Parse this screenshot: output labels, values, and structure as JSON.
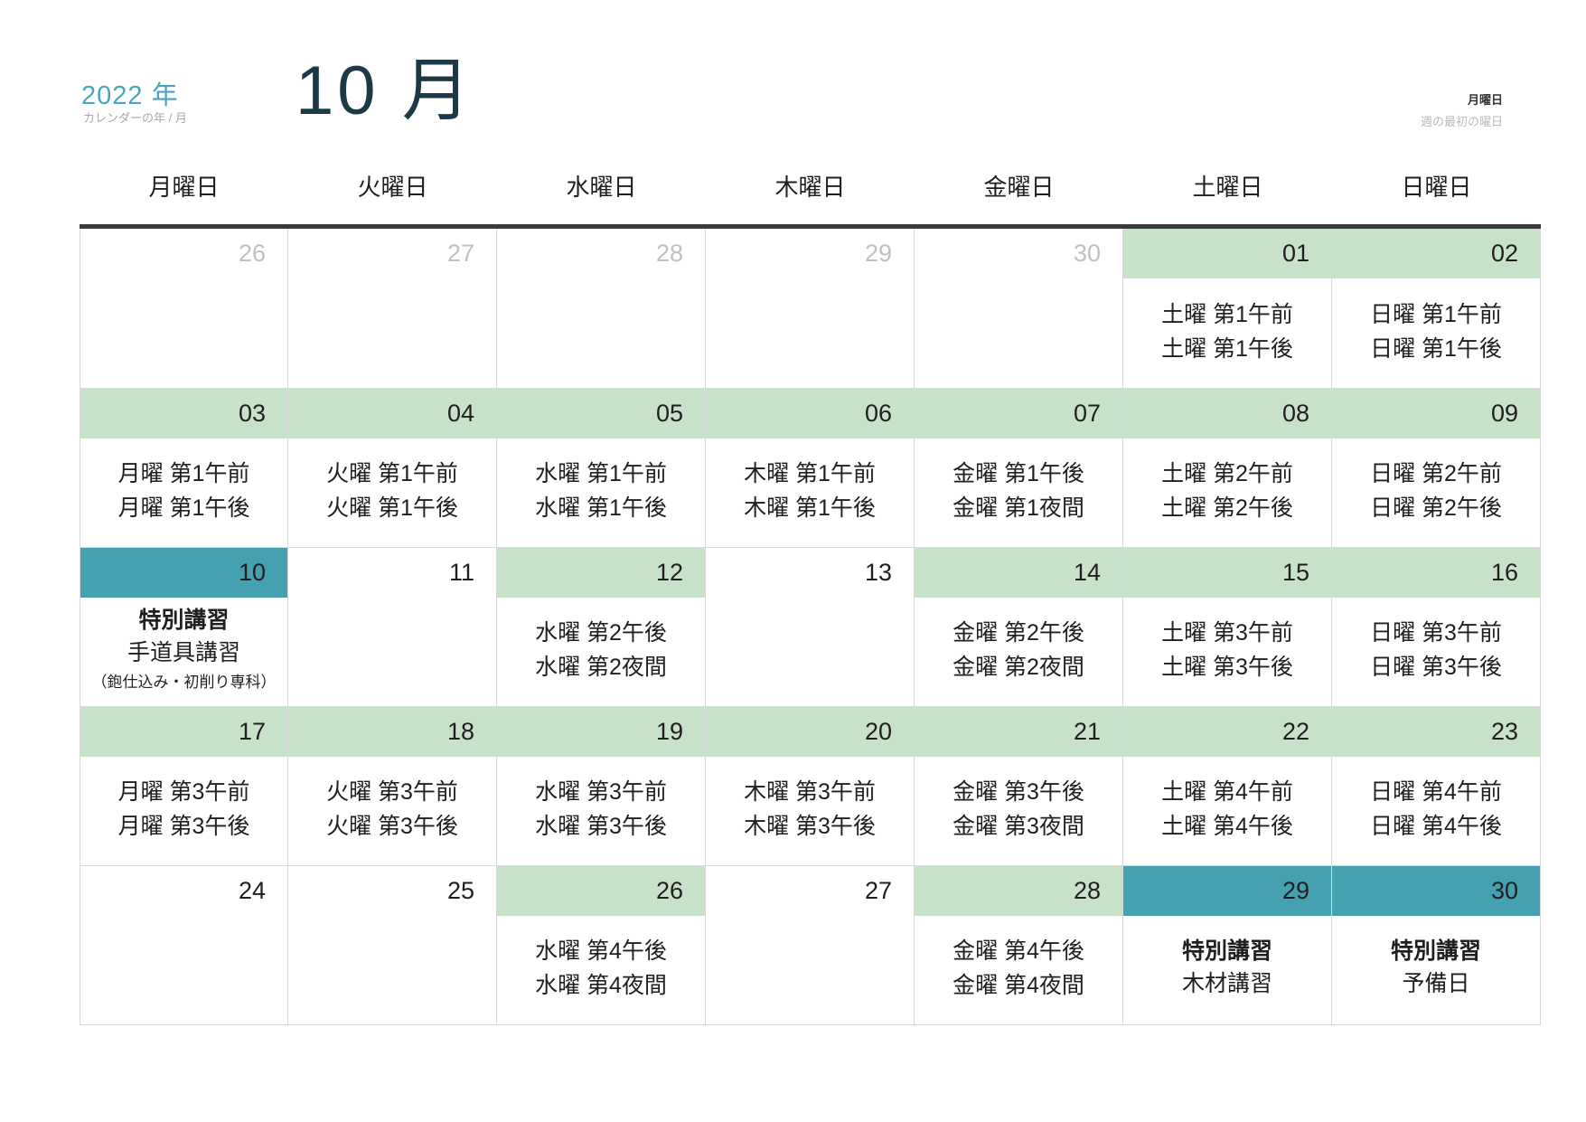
{
  "header": {
    "year": "2022 年",
    "year_caption": "カレンダーの年 / 月",
    "month_title": "10 月",
    "week_start": "月曜日",
    "week_start_caption": "週の最初の曜日"
  },
  "colors": {
    "band_green": "#c8e2ca",
    "band_teal": "#45a1b0",
    "year_text": "#4aa6bc",
    "title_text": "#1c3945",
    "muted_number": "#c0c0c0"
  },
  "weekdays": [
    "月曜日",
    "火曜日",
    "水曜日",
    "木曜日",
    "金曜日",
    "土曜日",
    "日曜日"
  ],
  "weeks": [
    {
      "days": [
        {
          "num": "26",
          "band": "outside",
          "events": []
        },
        {
          "num": "27",
          "band": "outside",
          "events": []
        },
        {
          "num": "28",
          "band": "outside",
          "events": []
        },
        {
          "num": "29",
          "band": "outside",
          "events": []
        },
        {
          "num": "30",
          "band": "outside",
          "events": []
        },
        {
          "num": "01",
          "band": "green",
          "events": [
            {
              "text": "土曜 第1午前",
              "style": "normal"
            },
            {
              "text": "土曜 第1午後",
              "style": "normal"
            }
          ]
        },
        {
          "num": "02",
          "band": "green",
          "events": [
            {
              "text": "日曜 第1午前",
              "style": "normal"
            },
            {
              "text": "日曜 第1午後",
              "style": "normal"
            }
          ]
        }
      ]
    },
    {
      "days": [
        {
          "num": "03",
          "band": "green",
          "events": [
            {
              "text": "月曜 第1午前",
              "style": "normal"
            },
            {
              "text": "月曜 第1午後",
              "style": "normal"
            }
          ]
        },
        {
          "num": "04",
          "band": "green",
          "events": [
            {
              "text": "火曜 第1午前",
              "style": "normal"
            },
            {
              "text": "火曜 第1午後",
              "style": "normal"
            }
          ]
        },
        {
          "num": "05",
          "band": "green",
          "events": [
            {
              "text": "水曜 第1午前",
              "style": "normal"
            },
            {
              "text": "水曜 第1午後",
              "style": "normal"
            }
          ]
        },
        {
          "num": "06",
          "band": "green",
          "events": [
            {
              "text": "木曜 第1午前",
              "style": "normal"
            },
            {
              "text": "木曜 第1午後",
              "style": "normal"
            }
          ]
        },
        {
          "num": "07",
          "band": "green",
          "events": [
            {
              "text": "金曜 第1午後",
              "style": "normal"
            },
            {
              "text": "金曜 第1夜間",
              "style": "normal"
            }
          ]
        },
        {
          "num": "08",
          "band": "green",
          "events": [
            {
              "text": "土曜 第2午前",
              "style": "normal"
            },
            {
              "text": "土曜 第2午後",
              "style": "normal"
            }
          ]
        },
        {
          "num": "09",
          "band": "green",
          "events": [
            {
              "text": "日曜 第2午前",
              "style": "normal"
            },
            {
              "text": "日曜 第2午後",
              "style": "normal"
            }
          ]
        }
      ]
    },
    {
      "days": [
        {
          "num": "10",
          "band": "teal",
          "events": [
            {
              "text": "特別講習",
              "style": "bold"
            },
            {
              "text": "手道具講習",
              "style": "normal"
            },
            {
              "text": "（鉋仕込み・初削り専科）",
              "style": "small"
            }
          ]
        },
        {
          "num": "11",
          "band": "plain",
          "events": []
        },
        {
          "num": "12",
          "band": "green",
          "events": [
            {
              "text": "水曜 第2午後",
              "style": "normal"
            },
            {
              "text": "水曜 第2夜間",
              "style": "normal"
            }
          ]
        },
        {
          "num": "13",
          "band": "plain",
          "events": []
        },
        {
          "num": "14",
          "band": "green",
          "events": [
            {
              "text": "金曜 第2午後",
              "style": "normal"
            },
            {
              "text": "金曜 第2夜間",
              "style": "normal"
            }
          ]
        },
        {
          "num": "15",
          "band": "green",
          "events": [
            {
              "text": "土曜 第3午前",
              "style": "normal"
            },
            {
              "text": "土曜 第3午後",
              "style": "normal"
            }
          ]
        },
        {
          "num": "16",
          "band": "green",
          "events": [
            {
              "text": "日曜 第3午前",
              "style": "normal"
            },
            {
              "text": "日曜 第3午後",
              "style": "normal"
            }
          ]
        }
      ]
    },
    {
      "days": [
        {
          "num": "17",
          "band": "green",
          "events": [
            {
              "text": "月曜 第3午前",
              "style": "normal"
            },
            {
              "text": "月曜 第3午後",
              "style": "normal"
            }
          ]
        },
        {
          "num": "18",
          "band": "green",
          "events": [
            {
              "text": "火曜 第3午前",
              "style": "normal"
            },
            {
              "text": "火曜 第3午後",
              "style": "normal"
            }
          ]
        },
        {
          "num": "19",
          "band": "green",
          "events": [
            {
              "text": "水曜 第3午前",
              "style": "normal"
            },
            {
              "text": "水曜 第3午後",
              "style": "normal"
            }
          ]
        },
        {
          "num": "20",
          "band": "green",
          "events": [
            {
              "text": "木曜 第3午前",
              "style": "normal"
            },
            {
              "text": "木曜 第3午後",
              "style": "normal"
            }
          ]
        },
        {
          "num": "21",
          "band": "green",
          "events": [
            {
              "text": "金曜 第3午後",
              "style": "normal"
            },
            {
              "text": "金曜 第3夜間",
              "style": "normal"
            }
          ]
        },
        {
          "num": "22",
          "band": "green",
          "events": [
            {
              "text": "土曜 第4午前",
              "style": "normal"
            },
            {
              "text": "土曜 第4午後",
              "style": "normal"
            }
          ]
        },
        {
          "num": "23",
          "band": "green",
          "events": [
            {
              "text": "日曜 第4午前",
              "style": "normal"
            },
            {
              "text": "日曜 第4午後",
              "style": "normal"
            }
          ]
        }
      ]
    },
    {
      "days": [
        {
          "num": "24",
          "band": "plain",
          "events": []
        },
        {
          "num": "25",
          "band": "plain",
          "events": []
        },
        {
          "num": "26",
          "band": "green",
          "events": [
            {
              "text": "水曜 第4午後",
              "style": "normal"
            },
            {
              "text": "水曜 第4夜間",
              "style": "normal"
            }
          ]
        },
        {
          "num": "27",
          "band": "plain",
          "events": []
        },
        {
          "num": "28",
          "band": "green",
          "events": [
            {
              "text": "金曜 第4午後",
              "style": "normal"
            },
            {
              "text": "金曜 第4夜間",
              "style": "normal"
            }
          ]
        },
        {
          "num": "29",
          "band": "teal",
          "events": [
            {
              "text": "特別講習",
              "style": "bold"
            },
            {
              "text": "木材講習",
              "style": "normal"
            }
          ]
        },
        {
          "num": "30",
          "band": "teal",
          "events": [
            {
              "text": "特別講習",
              "style": "bold"
            },
            {
              "text": "予備日",
              "style": "normal"
            }
          ]
        }
      ]
    }
  ]
}
